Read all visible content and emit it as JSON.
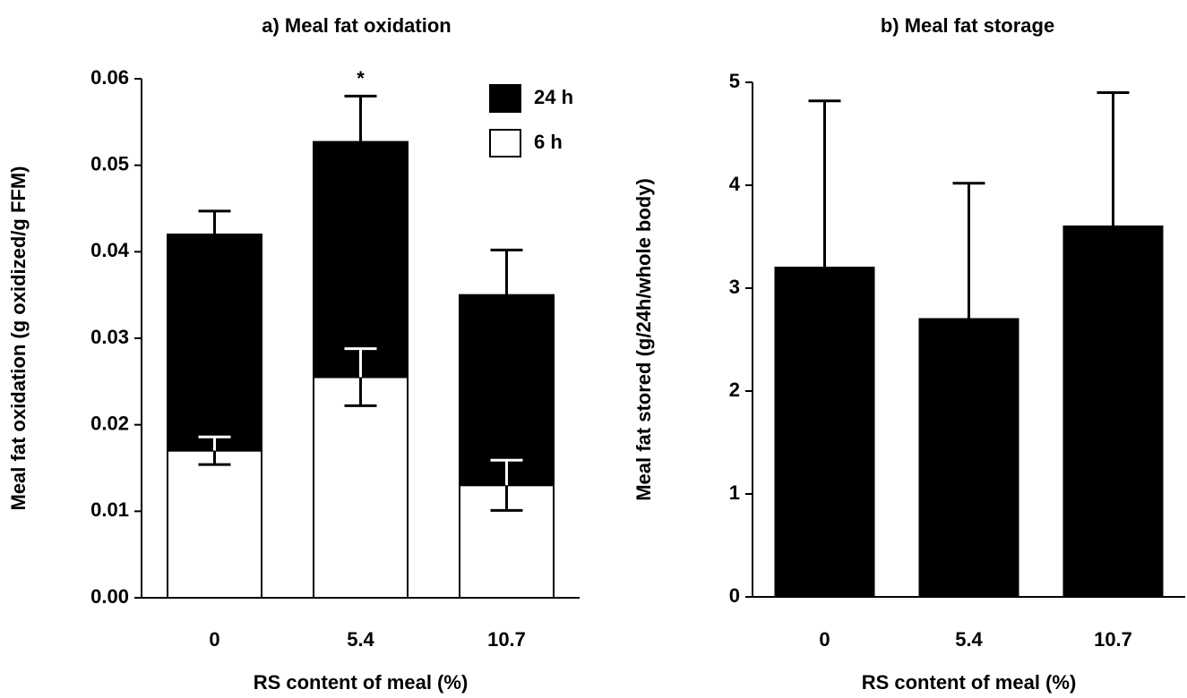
{
  "chart_data": [
    {
      "type": "bar",
      "title": "a) Meal fat oxidation",
      "xlabel": "RS content of meal (%)",
      "ylabel": "Meal fat oxidation (g oxidized/g FFM)",
      "categories": [
        "0",
        "5.4",
        "10.7"
      ],
      "series": [
        {
          "name": "24 h",
          "color": "#000000",
          "values": [
            0.042,
            0.0527,
            0.035
          ],
          "errors": [
            0.0027,
            0.0053,
            0.0052
          ]
        },
        {
          "name": "6 h",
          "color": "#ffffff",
          "values": [
            0.017,
            0.0255,
            0.013
          ],
          "errors": [
            0.0016,
            0.0033,
            0.0029
          ]
        }
      ],
      "annotations": [
        {
          "text": "*",
          "category": 1
        }
      ],
      "ylim": [
        0,
        0.06
      ],
      "yticks": [
        {
          "value": 0,
          "label": "0.00"
        },
        0.01,
        0.02,
        0.03,
        0.04,
        0.05,
        0.06
      ],
      "legend": "upper right"
    },
    {
      "type": "bar",
      "title": "b)  Meal fat storage",
      "xlabel": "RS content of meal (%)",
      "ylabel": "Meal fat stored (g/24h/whole body)",
      "categories": [
        "0",
        "5.4",
        "10.7"
      ],
      "series": [
        {
          "color": "#000000",
          "values": [
            3.2,
            2.7,
            3.6
          ],
          "errors": [
            1.62,
            1.32,
            1.3
          ]
        }
      ],
      "ylim": [
        0,
        5
      ],
      "yticks": [
        0,
        1,
        2,
        3,
        4,
        5
      ]
    }
  ]
}
